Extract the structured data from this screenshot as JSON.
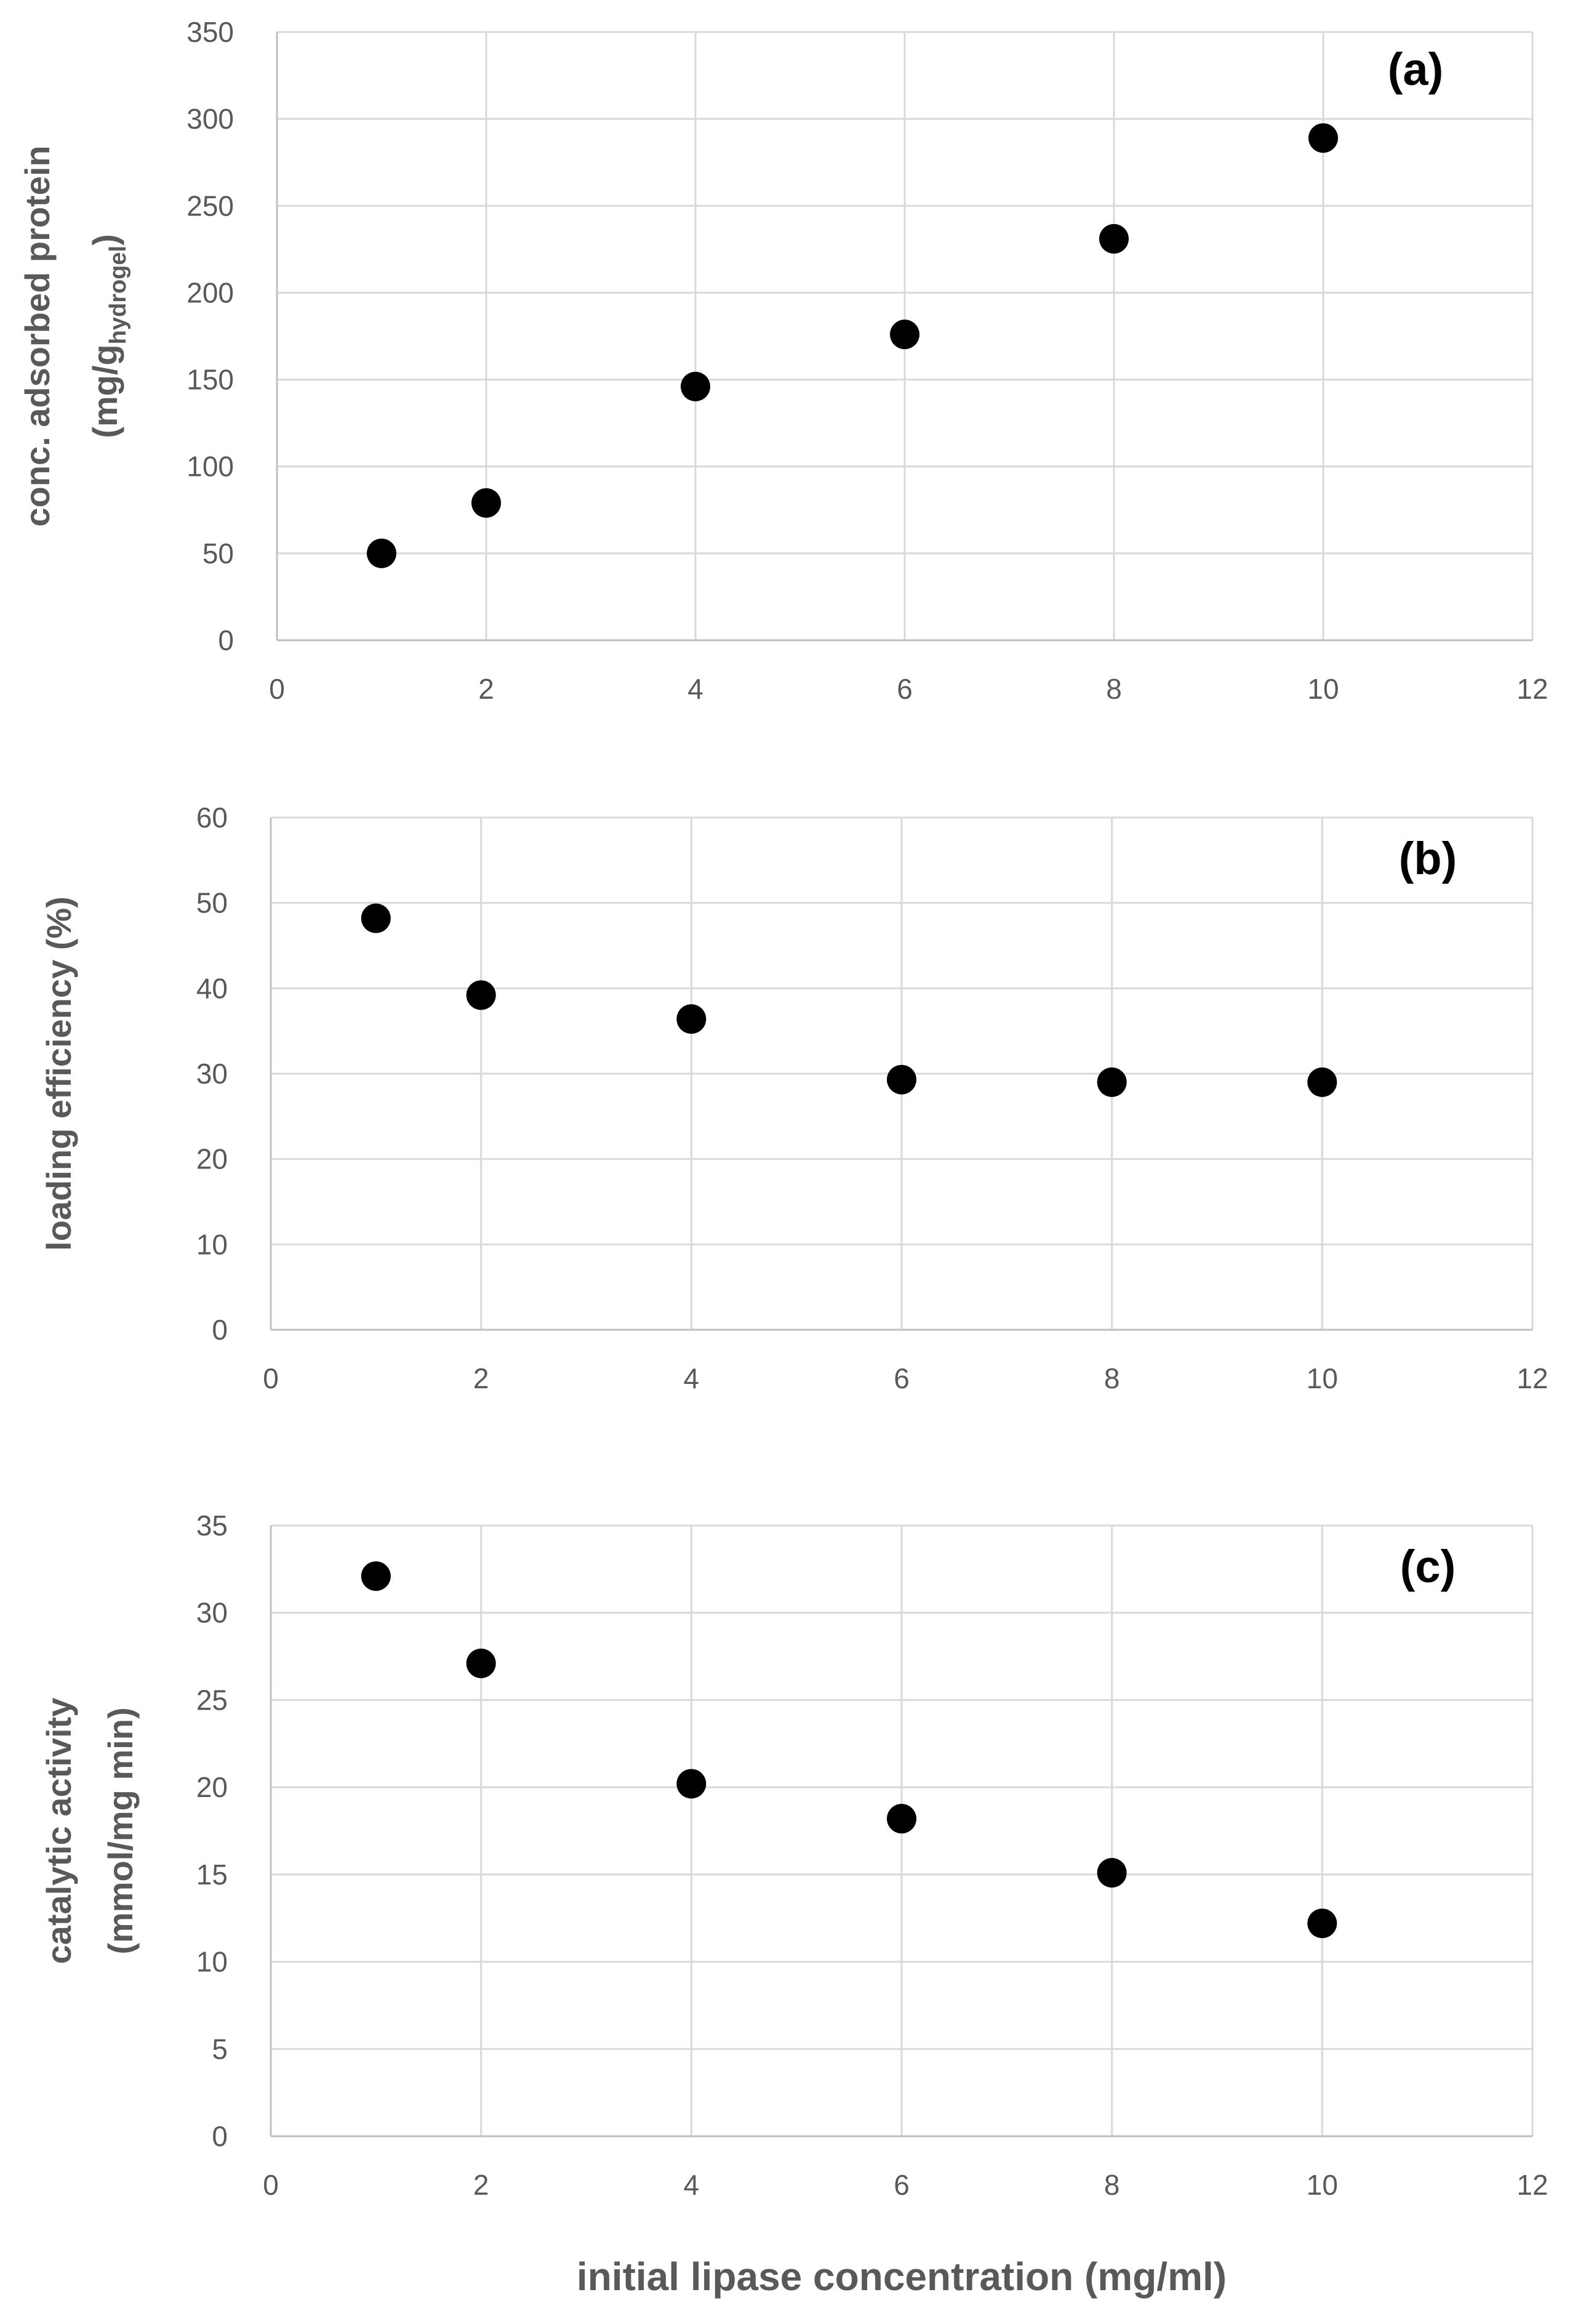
{
  "colors": {
    "marker": "#000000",
    "grid": "#d9d9d9",
    "tick_text": "#595959"
  },
  "x_axis_title": "initial lipase concentration (mg/ml)",
  "chart_data": [
    {
      "type": "scatter",
      "panel_label": "(a)",
      "ylabel_lines": [
        "conc. adsorbed protein",
        "(mg/g",
        "hydrogel",
        ")"
      ],
      "x": [
        1,
        2,
        4,
        6,
        8,
        10
      ],
      "y": [
        50,
        79,
        146,
        176,
        231,
        289
      ],
      "xlim": [
        0,
        12
      ],
      "ylim": [
        0,
        350
      ],
      "xticks": [
        0,
        2,
        4,
        6,
        8,
        10,
        12
      ],
      "yticks": [
        0,
        50,
        100,
        150,
        200,
        250,
        300,
        350
      ],
      "grid": true
    },
    {
      "type": "scatter",
      "panel_label": "(b)",
      "ylabel_lines": [
        "loading efficiency (%)"
      ],
      "x": [
        1,
        2,
        4,
        6,
        8,
        10
      ],
      "y": [
        48.2,
        39.2,
        36.4,
        29.3,
        29.0,
        29.0
      ],
      "xlim": [
        0,
        12
      ],
      "ylim": [
        0,
        60
      ],
      "xticks": [
        0,
        2,
        4,
        6,
        8,
        10,
        12
      ],
      "yticks": [
        0,
        10,
        20,
        30,
        40,
        50,
        60
      ],
      "grid": true
    },
    {
      "type": "scatter",
      "panel_label": "(c)",
      "ylabel_lines": [
        "catalytic activity",
        "(mmol/mg min)"
      ],
      "x": [
        1,
        2,
        4,
        6,
        8,
        10
      ],
      "y": [
        32.1,
        27.1,
        20.2,
        18.2,
        15.1,
        12.2
      ],
      "xlim": [
        0,
        12
      ],
      "ylim": [
        0,
        35
      ],
      "xticks": [
        0,
        2,
        4,
        6,
        8,
        10,
        12
      ],
      "yticks": [
        0,
        5,
        10,
        15,
        20,
        25,
        30,
        35
      ],
      "grid": true
    }
  ]
}
